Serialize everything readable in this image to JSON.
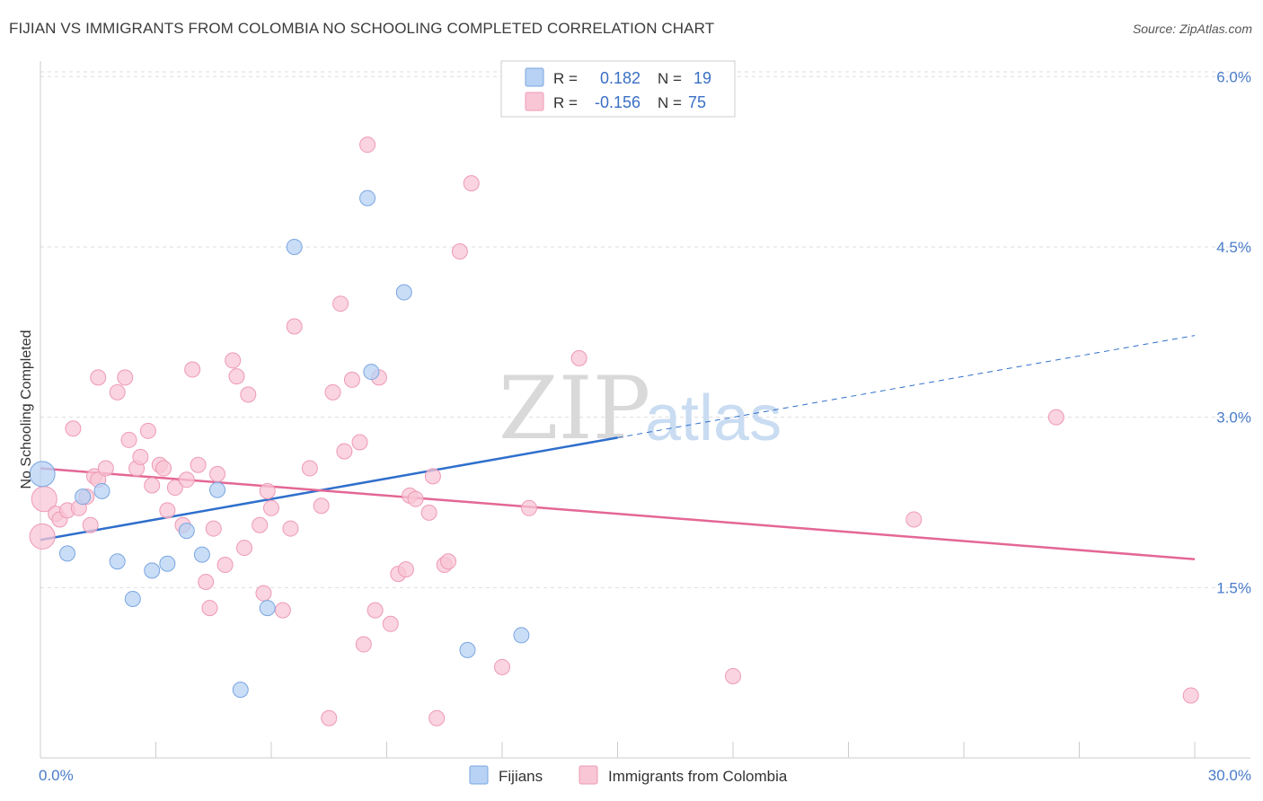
{
  "title": "FIJIAN VS IMMIGRANTS FROM COLOMBIA NO SCHOOLING COMPLETED CORRELATION CHART",
  "source": "Source: ZipAtlas.com",
  "watermark": {
    "zip": "ZIP",
    "atlas": "atlas"
  },
  "colors": {
    "fijians_fill": "#b7d2f4",
    "fijians_stroke": "#7aa6e0",
    "fijians_line": "#2f6fcc",
    "colombia_fill": "#f8c6d5",
    "colombia_stroke": "#ee9ab5",
    "colombia_line": "#e46795",
    "grid": "#dddddd",
    "axis_label": "#4a7cc9"
  },
  "legend": {
    "row1": {
      "r_label": "R =",
      "r_value": "0.182",
      "n_label": "N =",
      "n_value": "19"
    },
    "row2": {
      "r_label": "R =",
      "r_value": "-0.156",
      "n_label": "N =",
      "n_value": "75"
    }
  },
  "bottom_legend": {
    "fijians": "Fijians",
    "colombia": "Immigrants from Colombia"
  },
  "chart_data": {
    "type": "scatter",
    "title": "FIJIAN VS IMMIGRANTS FROM COLOMBIA NO SCHOOLING COMPLETED CORRELATION CHART",
    "xlabel": "",
    "ylabel": "No Schooling Completed",
    "xlim": [
      0,
      30
    ],
    "ylim": [
      0,
      6.2
    ],
    "x_tick_labels": [
      "0.0%",
      "30.0%"
    ],
    "y_tick_labels": [
      "1.5%",
      "3.0%",
      "4.5%",
      "6.0%"
    ],
    "y_ticks": [
      1.5,
      3.0,
      4.5,
      6.0
    ],
    "grid": true,
    "legend_position": "top-center",
    "series": [
      {
        "name": "Fijians",
        "R": 0.182,
        "N": 19,
        "points": [
          [
            0.05,
            2.5
          ],
          [
            0.7,
            1.8
          ],
          [
            1.1,
            2.3
          ],
          [
            1.6,
            2.35
          ],
          [
            2.0,
            1.73
          ],
          [
            2.4,
            1.4
          ],
          [
            2.9,
            1.65
          ],
          [
            3.3,
            1.71
          ],
          [
            3.8,
            2.0
          ],
          [
            4.2,
            1.79
          ],
          [
            4.6,
            2.36
          ],
          [
            5.2,
            0.6
          ],
          [
            5.9,
            1.32
          ],
          [
            6.6,
            4.5
          ],
          [
            8.6,
            3.4
          ],
          [
            8.5,
            4.93
          ],
          [
            9.45,
            4.1
          ],
          [
            11.1,
            0.95
          ],
          [
            12.5,
            1.08
          ]
        ],
        "trend": {
          "x": [
            0,
            15.0
          ],
          "y": [
            1.92,
            2.82
          ]
        },
        "trend_dashed": {
          "x": [
            15.0,
            30.0
          ],
          "y": [
            2.82,
            3.72
          ]
        }
      },
      {
        "name": "Immigrants from Colombia",
        "R": -0.156,
        "N": 75,
        "points": [
          [
            0.05,
            1.95
          ],
          [
            0.1,
            2.28
          ],
          [
            0.4,
            2.15
          ],
          [
            0.5,
            2.1
          ],
          [
            0.7,
            2.18
          ],
          [
            0.85,
            2.9
          ],
          [
            1.0,
            2.2
          ],
          [
            1.2,
            2.3
          ],
          [
            1.3,
            2.05
          ],
          [
            1.4,
            2.48
          ],
          [
            1.5,
            2.45
          ],
          [
            1.5,
            3.35
          ],
          [
            1.7,
            2.55
          ],
          [
            2.0,
            3.22
          ],
          [
            2.2,
            3.35
          ],
          [
            2.3,
            2.8
          ],
          [
            2.5,
            2.55
          ],
          [
            2.6,
            2.65
          ],
          [
            2.8,
            2.88
          ],
          [
            2.9,
            2.4
          ],
          [
            3.1,
            2.58
          ],
          [
            3.2,
            2.55
          ],
          [
            3.3,
            2.18
          ],
          [
            3.5,
            2.38
          ],
          [
            3.7,
            2.05
          ],
          [
            3.8,
            2.45
          ],
          [
            3.95,
            3.42
          ],
          [
            4.1,
            2.58
          ],
          [
            4.3,
            1.55
          ],
          [
            4.4,
            1.32
          ],
          [
            4.5,
            2.02
          ],
          [
            4.6,
            2.5
          ],
          [
            4.8,
            1.7
          ],
          [
            5.0,
            3.5
          ],
          [
            5.1,
            3.36
          ],
          [
            5.3,
            1.85
          ],
          [
            5.4,
            3.2
          ],
          [
            5.7,
            2.05
          ],
          [
            5.8,
            1.45
          ],
          [
            5.9,
            2.35
          ],
          [
            6.0,
            2.2
          ],
          [
            6.3,
            1.3
          ],
          [
            6.5,
            2.02
          ],
          [
            6.6,
            3.8
          ],
          [
            7.0,
            2.55
          ],
          [
            7.3,
            2.22
          ],
          [
            7.5,
            0.35
          ],
          [
            7.6,
            3.22
          ],
          [
            7.8,
            4.0
          ],
          [
            7.9,
            2.7
          ],
          [
            8.1,
            3.33
          ],
          [
            8.3,
            2.78
          ],
          [
            8.4,
            1.0
          ],
          [
            8.5,
            5.4
          ],
          [
            8.7,
            1.3
          ],
          [
            8.8,
            3.35
          ],
          [
            9.1,
            1.18
          ],
          [
            9.3,
            1.62
          ],
          [
            9.5,
            1.66
          ],
          [
            9.6,
            2.31
          ],
          [
            9.75,
            2.28
          ],
          [
            10.1,
            2.16
          ],
          [
            10.2,
            2.48
          ],
          [
            10.3,
            0.35
          ],
          [
            10.5,
            1.7
          ],
          [
            10.6,
            1.73
          ],
          [
            10.9,
            4.46
          ],
          [
            11.2,
            5.06
          ],
          [
            12.0,
            0.8
          ],
          [
            12.7,
            2.2
          ],
          [
            14.0,
            3.52
          ],
          [
            18.0,
            0.72
          ],
          [
            22.7,
            2.1
          ],
          [
            26.4,
            3.0
          ],
          [
            29.9,
            0.55
          ]
        ],
        "trend": {
          "x": [
            0,
            30.0
          ],
          "y": [
            2.55,
            1.75
          ]
        }
      }
    ]
  }
}
